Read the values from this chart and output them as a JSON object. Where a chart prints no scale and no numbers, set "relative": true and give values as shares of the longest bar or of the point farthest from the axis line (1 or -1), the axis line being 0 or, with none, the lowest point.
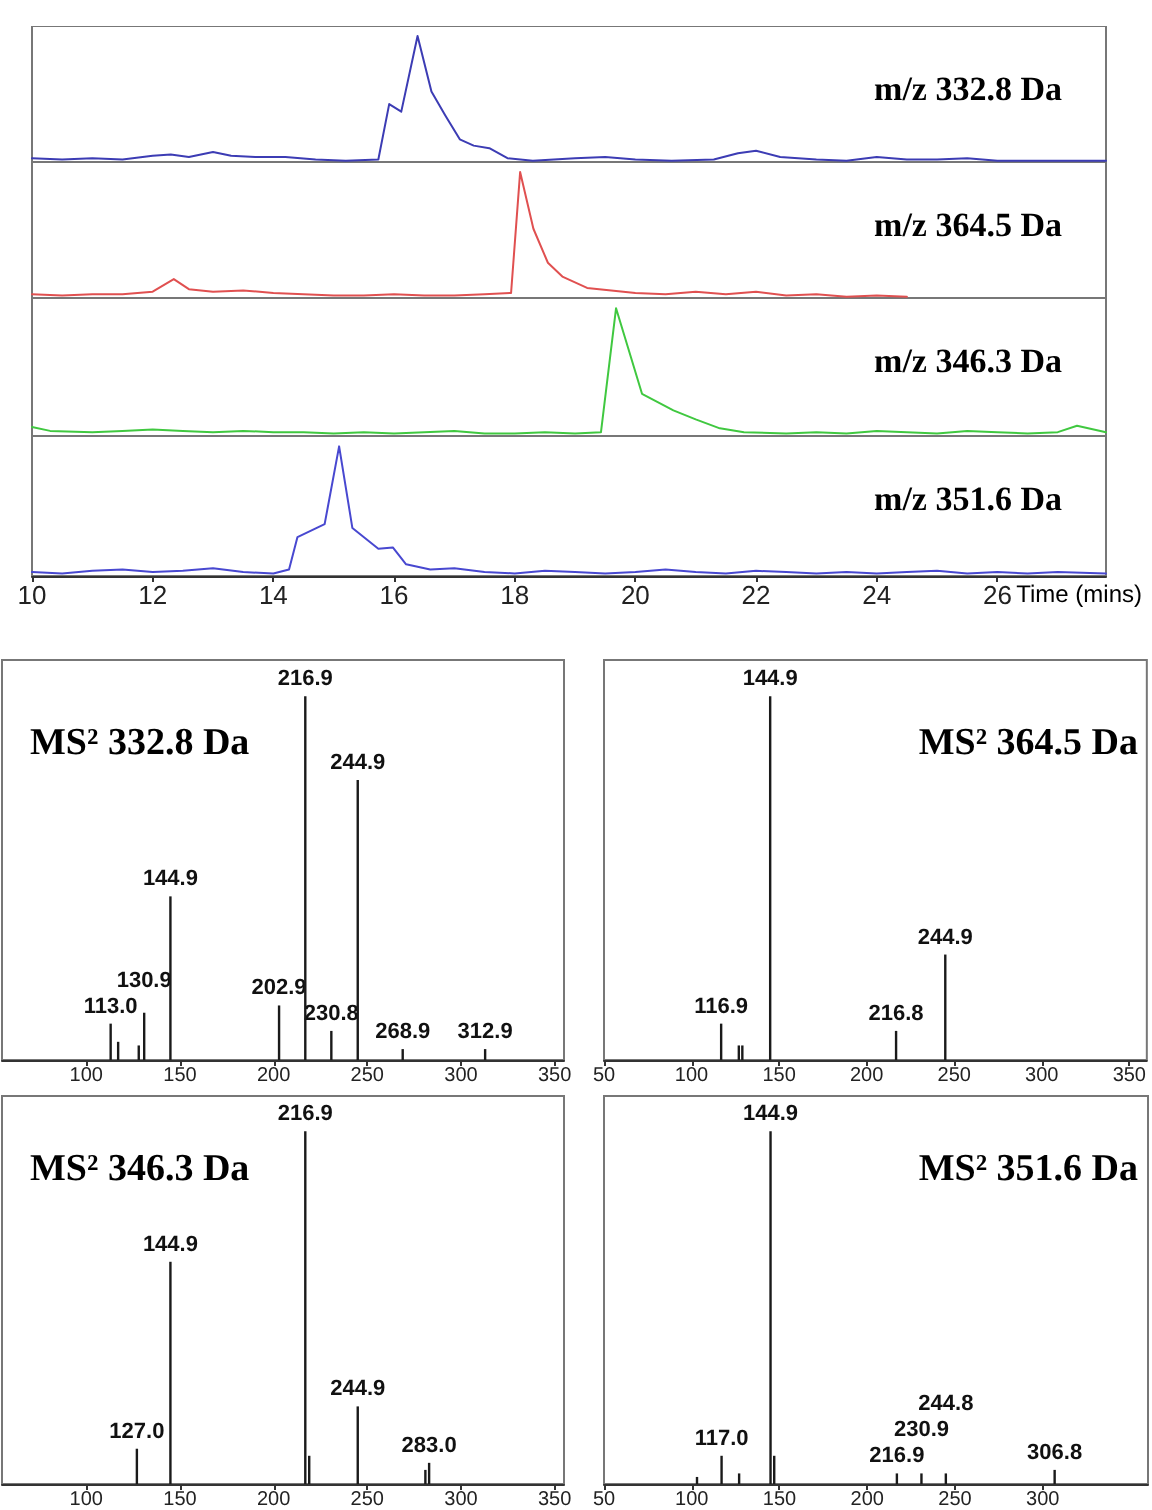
{
  "chart_data": [
    {
      "type": "line",
      "title": "m/z 332.8 Da",
      "relative": true,
      "marker": "none",
      "tick_labels": false,
      "xlim": [
        10,
        27.8
      ],
      "xticks": [
        10,
        12,
        14,
        16,
        18,
        20,
        22,
        24,
        26
      ],
      "x": [
        10.0,
        10.5,
        11.0,
        11.5,
        12.0,
        12.3,
        12.6,
        13.0,
        13.3,
        13.7,
        14.2,
        14.7,
        15.2,
        15.74,
        15.92,
        16.12,
        16.39,
        16.62,
        16.85,
        17.09,
        17.32,
        17.58,
        17.88,
        18.3,
        19.0,
        19.5,
        20.0,
        20.6,
        21.3,
        21.7,
        22.0,
        22.4,
        23.0,
        23.5,
        24.0,
        24.5,
        25.0,
        25.5,
        26.0,
        26.5,
        27.0,
        27.8
      ],
      "series": [
        {
          "color": "#3c3cb4",
          "values": [
            0.03,
            0.02,
            0.03,
            0.02,
            0.05,
            0.06,
            0.04,
            0.08,
            0.05,
            0.04,
            0.04,
            0.02,
            0.01,
            0.02,
            0.46,
            0.4,
            1,
            0.56,
            0.37,
            0.18,
            0.13,
            0.11,
            0.03,
            0.01,
            0.03,
            0.04,
            0.02,
            0.01,
            0.02,
            0.07,
            0.09,
            0.04,
            0.02,
            0.01,
            0.04,
            0.02,
            0.02,
            0.03,
            0.01,
            0.01,
            0.01,
            0.01
          ]
        }
      ]
    },
    {
      "type": "line",
      "title": "m/z 364.5 Da",
      "relative": true,
      "marker": "none",
      "tick_labels": false,
      "xlim": [
        10,
        27.8
      ],
      "xticks": [
        10,
        12,
        14,
        16,
        18,
        20,
        22,
        24,
        26
      ],
      "x": [
        10.0,
        10.5,
        11.0,
        11.5,
        12.0,
        12.35,
        12.6,
        13.0,
        13.5,
        14.0,
        14.5,
        15.0,
        15.5,
        16.0,
        16.5,
        17.0,
        17.5,
        17.94,
        18.09,
        18.31,
        18.55,
        18.79,
        19.2,
        19.6,
        20.0,
        20.5,
        21.0,
        21.5,
        22.0,
        22.5,
        23.0,
        23.5,
        24.0,
        24.5
      ],
      "series": [
        {
          "color": "#e05050",
          "values": [
            0.03,
            0.02,
            0.03,
            0.03,
            0.05,
            0.15,
            0.07,
            0.05,
            0.06,
            0.04,
            0.03,
            0.02,
            0.02,
            0.03,
            0.02,
            0.02,
            0.03,
            0.04,
            1,
            0.55,
            0.28,
            0.17,
            0.08,
            0.06,
            0.04,
            0.03,
            0.05,
            0.03,
            0.05,
            0.02,
            0.03,
            0.01,
            0.02,
            0.01
          ]
        }
      ]
    },
    {
      "type": "line",
      "title": "m/z 346.3 Da",
      "relative": true,
      "marker": "none",
      "tick_labels": false,
      "xlim": [
        10,
        27.8
      ],
      "xticks": [
        10,
        12,
        14,
        16,
        18,
        20,
        22,
        24,
        26
      ],
      "x": [
        10.0,
        10.3,
        11.0,
        11.5,
        12.0,
        12.5,
        13.0,
        13.5,
        14.0,
        14.5,
        15.0,
        15.5,
        16.0,
        16.5,
        17.0,
        17.5,
        18.0,
        18.5,
        19.0,
        19.43,
        19.68,
        20.11,
        20.63,
        21.0,
        21.4,
        21.8,
        22.5,
        23.0,
        23.5,
        24.0,
        24.5,
        25.0,
        25.5,
        26.0,
        26.5,
        27.0,
        27.32,
        27.8
      ],
      "series": [
        {
          "color": "#40c840",
          "values": [
            0.07,
            0.04,
            0.03,
            0.04,
            0.05,
            0.04,
            0.03,
            0.04,
            0.03,
            0.03,
            0.02,
            0.03,
            0.02,
            0.03,
            0.04,
            0.02,
            0.02,
            0.03,
            0.02,
            0.03,
            1,
            0.33,
            0.2,
            0.13,
            0.06,
            0.03,
            0.02,
            0.03,
            0.02,
            0.04,
            0.03,
            0.02,
            0.04,
            0.03,
            0.02,
            0.03,
            0.08,
            0.03
          ]
        }
      ]
    },
    {
      "type": "line",
      "title": "m/z 351.6 Da",
      "xlabel": "Time (mins)",
      "relative": true,
      "marker": "none",
      "tick_labels": "x",
      "xlim": [
        10,
        27.8
      ],
      "xticks": [
        10,
        12,
        14,
        16,
        18,
        20,
        22,
        24,
        26
      ],
      "x": [
        10.0,
        10.5,
        11.0,
        11.5,
        12.0,
        12.5,
        13.0,
        13.5,
        14.0,
        14.26,
        14.4,
        14.85,
        15.09,
        15.31,
        15.74,
        15.98,
        16.2,
        16.6,
        17.0,
        17.5,
        18.0,
        18.5,
        19.0,
        19.5,
        20.0,
        20.5,
        21.0,
        21.5,
        22.0,
        22.5,
        23.0,
        23.5,
        24.0,
        24.5,
        25.0,
        25.5,
        26.0,
        26.5,
        27.0,
        27.8
      ],
      "series": [
        {
          "color": "#4848d0",
          "values": [
            0.03,
            0.02,
            0.04,
            0.05,
            0.03,
            0.04,
            0.06,
            0.03,
            0.02,
            0.05,
            0.3,
            0.4,
            1,
            0.37,
            0.21,
            0.22,
            0.09,
            0.05,
            0.06,
            0.03,
            0.02,
            0.04,
            0.03,
            0.02,
            0.03,
            0.05,
            0.03,
            0.02,
            0.04,
            0.03,
            0.02,
            0.03,
            0.02,
            0.03,
            0.04,
            0.02,
            0.03,
            0.02,
            0.03,
            0.02
          ]
        }
      ]
    },
    {
      "type": "bar",
      "title": "MS² 332.8 Da",
      "relative": true,
      "tick_labels": "x",
      "xlim": [
        55,
        355
      ],
      "xticks": [
        100,
        150,
        200,
        250,
        300,
        350
      ],
      "color": "#1a1a1a",
      "x": [
        113.0,
        117,
        128,
        130.9,
        144.9,
        202.9,
        216.9,
        230.8,
        244.9,
        268.9,
        312.9
      ],
      "values": [
        0.1,
        0.05,
        0.04,
        0.13,
        0.45,
        0.15,
        1,
        0.08,
        0.77,
        0.03,
        0.03
      ],
      "annotations": [
        {
          "text": "113.0",
          "x": 113.0,
          "y": 0.1
        },
        {
          "text": "130.9",
          "x": 130.9,
          "y": 0.13
        },
        {
          "text": "144.9",
          "x": 144.9,
          "y": 0.45
        },
        {
          "text": "202.9",
          "x": 202.9,
          "y": 0.15
        },
        {
          "text": "216.9",
          "x": 216.9,
          "y": 1
        },
        {
          "text": "230.8",
          "x": 230.8,
          "y": 0.08
        },
        {
          "text": "244.9",
          "x": 244.9,
          "y": 0.77
        },
        {
          "text": "268.9",
          "x": 268.9,
          "y": 0.03
        },
        {
          "text": "312.9",
          "x": 312.9,
          "y": 0.03
        }
      ]
    },
    {
      "type": "bar",
      "title": "MS² 364.5 Da",
      "relative": true,
      "tick_labels": "x",
      "xlim": [
        50,
        360
      ],
      "xticks": [
        50,
        100,
        150,
        200,
        250,
        300,
        350
      ],
      "color": "#1a1a1a",
      "x": [
        116.9,
        127,
        129,
        144.9,
        216.8,
        244.9
      ],
      "values": [
        0.1,
        0.04,
        0.04,
        1,
        0.08,
        0.29
      ],
      "annotations": [
        {
          "text": "116.9",
          "x": 116.9,
          "y": 0.1
        },
        {
          "text": "144.9",
          "x": 144.9,
          "y": 1
        },
        {
          "text": "216.8",
          "x": 216.8,
          "y": 0.08
        },
        {
          "text": "244.9",
          "x": 244.9,
          "y": 0.29
        }
      ]
    },
    {
      "type": "bar",
      "title": "MS² 346.3 Da",
      "relative": true,
      "tick_labels": "x",
      "xlim": [
        55,
        355
      ],
      "xticks": [
        100,
        150,
        200,
        250,
        300,
        350
      ],
      "color": "#1a1a1a",
      "x": [
        127.0,
        144.9,
        216.9,
        219,
        244.9,
        281,
        283.0
      ],
      "values": [
        0.1,
        0.63,
        1,
        0.08,
        0.22,
        0.04,
        0.06
      ],
      "annotations": [
        {
          "text": "127.0",
          "x": 127.0,
          "y": 0.1
        },
        {
          "text": "144.9",
          "x": 144.9,
          "y": 0.63
        },
        {
          "text": "216.9",
          "x": 216.9,
          "y": 1
        },
        {
          "text": "244.9",
          "x": 244.9,
          "y": 0.22
        },
        {
          "text": "283.0",
          "x": 283.0,
          "y": 0.06
        }
      ]
    },
    {
      "type": "bar",
      "title": "MS² 351.6 Da",
      "relative": true,
      "tick_labels": "x",
      "xlim": [
        50,
        360
      ],
      "xticks": [
        50,
        100,
        150,
        200,
        250,
        300
      ],
      "color": "#1a1a1a",
      "x": [
        103,
        117.0,
        127,
        144.9,
        147,
        216.9,
        230.9,
        244.8,
        306.8
      ],
      "values": [
        0.02,
        0.08,
        0.03,
        1,
        0.08,
        0.03,
        0.03,
        0.03,
        0.04
      ],
      "annotations": [
        {
          "text": "117.0",
          "x": 117.0,
          "y": 0.08
        },
        {
          "text": "144.9",
          "x": 144.9,
          "y": 1
        },
        {
          "text": "216.9",
          "x": 216.9,
          "y": 0.03
        },
        {
          "text": "230.9",
          "x": 230.9,
          "y": 0.03
        },
        {
          "text": "244.8",
          "x": 244.8,
          "y": 0.03
        },
        {
          "text": "306.8",
          "x": 306.8,
          "y": 0.04
        }
      ]
    }
  ]
}
